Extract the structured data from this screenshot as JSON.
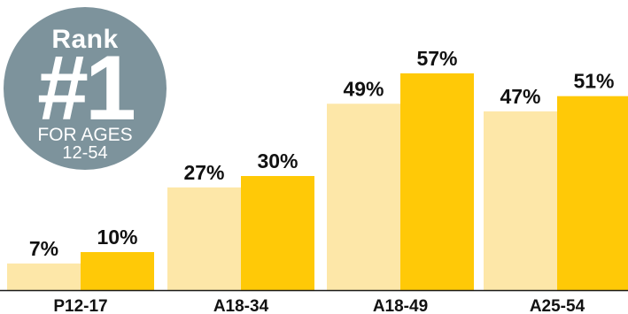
{
  "chart_data": {
    "type": "bar",
    "title": "",
    "xlabel": "",
    "ylabel": "",
    "ylim": [
      0,
      60
    ],
    "grid": false,
    "categories": [
      "P12-17",
      "A18-34",
      "A18-49",
      "A25-54"
    ],
    "series": [
      {
        "values": [
          7,
          27,
          49,
          47
        ],
        "labels": [
          "7%",
          "27%",
          "49%",
          "47%"
        ],
        "color": "#fde7a8"
      },
      {
        "values": [
          10,
          30,
          57,
          51
        ],
        "labels": [
          "10%",
          "30%",
          "57%",
          "51%"
        ],
        "color": "#ffc907"
      }
    ]
  },
  "badge": {
    "line1": "Rank",
    "line2": "#1",
    "line3": "FOR AGES",
    "line4": "12-54",
    "color": "#7d939c"
  },
  "colors": {
    "axis": "#1a1a1a",
    "text": "#111111"
  }
}
